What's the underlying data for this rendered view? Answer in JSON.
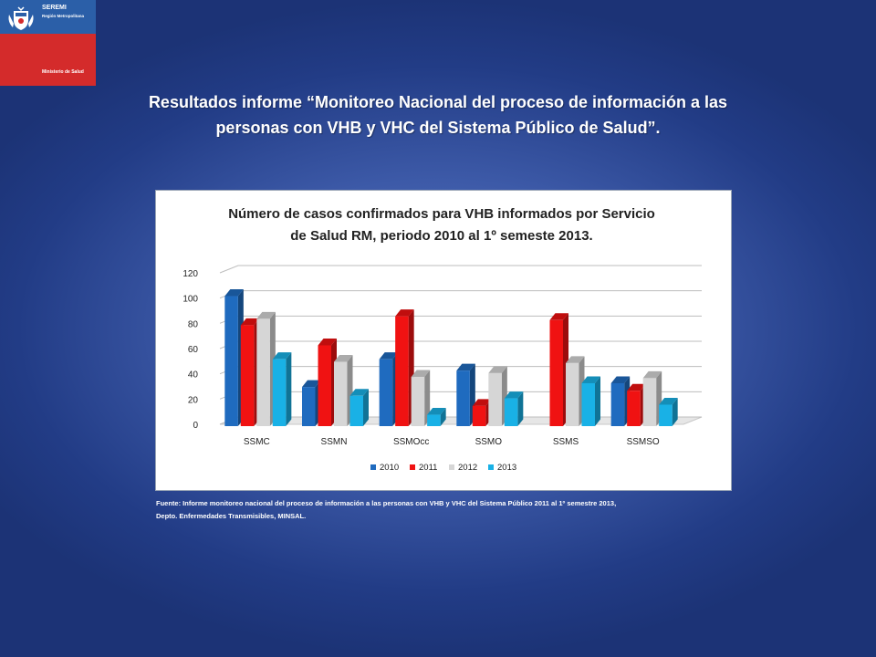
{
  "logo": {
    "line1": "SEREMI",
    "line2": "Región Metropolitana",
    "line3": "Ministerio de Salud"
  },
  "slide": {
    "title_line1": "Resultados informe “Monitoreo Nacional del proceso de información a las",
    "title_line2": "personas con VHB y VHC del Sistema Público de Salud”.",
    "source_line1": "Fuente: Informe monitoreo nacional del proceso de información a las personas con VHB y VHC del Sistema Público 2011 al 1º semestre 2013,",
    "source_line2": "Depto. Enfermedades Transmisibles, MINSAL."
  },
  "colors": {
    "s2010": "#1f6bbf",
    "s2011": "#f01212",
    "s2012": "#d6d6d6",
    "s2013": "#19b1e6"
  },
  "chart_data": {
    "type": "bar",
    "title_line1": "Número de casos confirmados para VHB informados por Servicio",
    "title_line2": "de Salud RM, periodo 2010 al 1º semeste 2013.",
    "categories": [
      "SSMC",
      "SSMN",
      "SSMOcc",
      "SSMO",
      "SSMS",
      "SSMSO"
    ],
    "series": [
      {
        "name": "2010",
        "values": [
          103,
          31,
          53,
          44,
          0,
          34
        ]
      },
      {
        "name": "2011",
        "values": [
          80,
          64,
          87,
          16,
          84,
          28
        ]
      },
      {
        "name": "2012",
        "values": [
          85,
          51,
          39,
          42,
          50,
          38
        ]
      },
      {
        "name": "2013",
        "values": [
          53,
          24,
          9,
          22,
          34,
          17
        ]
      }
    ],
    "ylim": [
      0,
      120
    ],
    "yticks": [
      "0",
      "20",
      "40",
      "60",
      "80",
      "100",
      "120"
    ],
    "grid": true,
    "legend": "bottom",
    "style": "3d"
  }
}
